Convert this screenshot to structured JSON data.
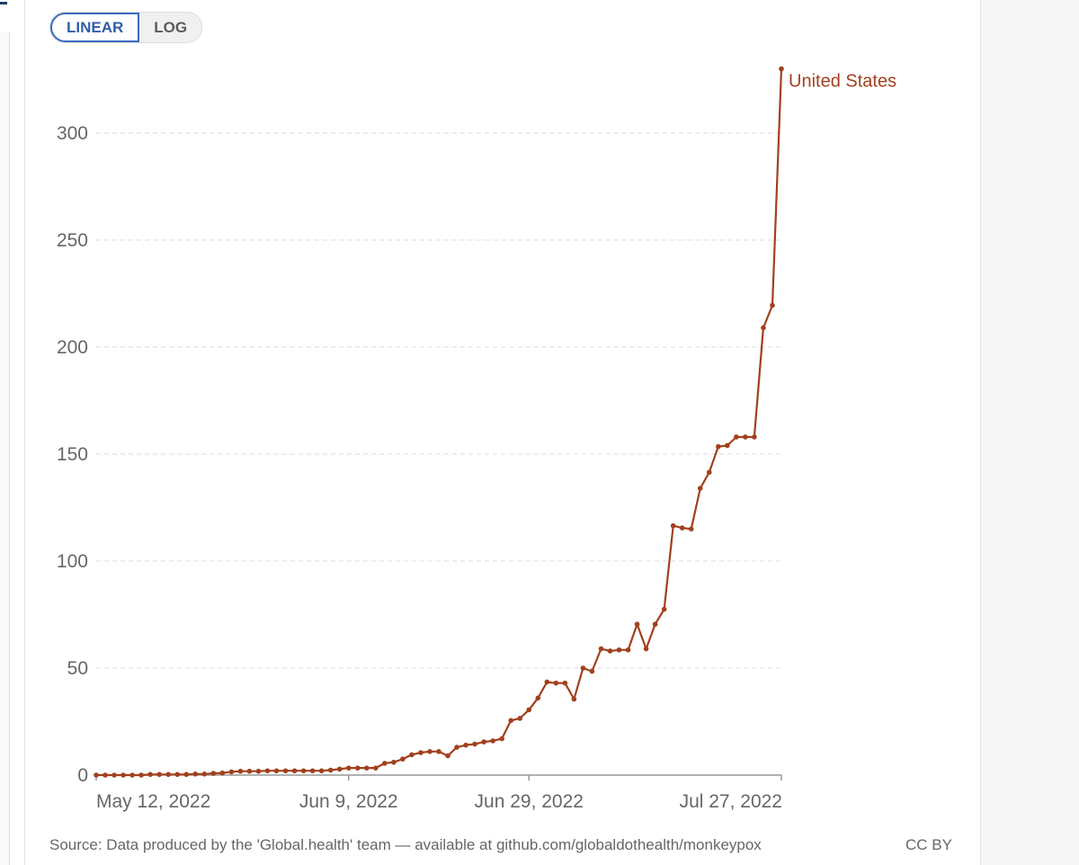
{
  "toggle": {
    "linear": "LINEAR",
    "log": "LOG",
    "selected": "LINEAR"
  },
  "footer": {
    "source": "Source: Data produced by the 'Global.health' team — available at github.com/globaldothealth/monkeypox",
    "license": "CC BY"
  },
  "chart_data": {
    "type": "line",
    "title": "",
    "xlabel": "",
    "ylabel": "",
    "ylim": [
      0,
      330
    ],
    "yticks": [
      0,
      50,
      100,
      150,
      200,
      250,
      300
    ],
    "xticks": [
      "May 12, 2022",
      "Jun 9, 2022",
      "Jun 29, 2022",
      "Jul 27, 2022"
    ],
    "xtick_dates": [
      "2022-05-12",
      "2022-06-09",
      "2022-06-29",
      "2022-07-27"
    ],
    "grid": "horizontal dashed",
    "line_color": "#a2401e",
    "series": [
      {
        "name": "United States",
        "x": [
          "2022-05-12",
          "2022-05-13",
          "2022-05-14",
          "2022-05-15",
          "2022-05-16",
          "2022-05-17",
          "2022-05-18",
          "2022-05-19",
          "2022-05-20",
          "2022-05-21",
          "2022-05-22",
          "2022-05-23",
          "2022-05-24",
          "2022-05-25",
          "2022-05-26",
          "2022-05-27",
          "2022-05-28",
          "2022-05-29",
          "2022-05-30",
          "2022-05-31",
          "2022-06-01",
          "2022-06-02",
          "2022-06-03",
          "2022-06-04",
          "2022-06-05",
          "2022-06-06",
          "2022-06-07",
          "2022-06-08",
          "2022-06-09",
          "2022-06-10",
          "2022-06-11",
          "2022-06-12",
          "2022-06-13",
          "2022-06-14",
          "2022-06-15",
          "2022-06-16",
          "2022-06-17",
          "2022-06-18",
          "2022-06-19",
          "2022-06-20",
          "2022-06-21",
          "2022-06-22",
          "2022-06-23",
          "2022-06-24",
          "2022-06-25",
          "2022-06-26",
          "2022-06-27",
          "2022-06-28",
          "2022-06-29",
          "2022-06-30",
          "2022-07-01",
          "2022-07-02",
          "2022-07-03",
          "2022-07-04",
          "2022-07-05",
          "2022-07-06",
          "2022-07-07",
          "2022-07-08",
          "2022-07-09",
          "2022-07-10",
          "2022-07-11",
          "2022-07-12",
          "2022-07-13",
          "2022-07-14",
          "2022-07-15",
          "2022-07-16",
          "2022-07-17",
          "2022-07-18",
          "2022-07-19",
          "2022-07-20",
          "2022-07-21",
          "2022-07-22",
          "2022-07-23",
          "2022-07-24",
          "2022-07-25",
          "2022-07-26",
          "2022-07-27"
        ],
        "values": [
          0,
          0,
          0,
          0,
          0,
          0,
          0.3,
          0.3,
          0.3,
          0.3,
          0.3,
          0.5,
          0.5,
          0.8,
          1,
          1.5,
          1.8,
          1.8,
          1.8,
          2,
          2,
          2,
          2,
          2,
          2,
          2,
          2.3,
          2.8,
          3.3,
          3.3,
          3.3,
          3.3,
          5.5,
          6,
          7.5,
          9.5,
          10.5,
          11,
          11,
          9,
          13,
          14,
          14.5,
          15.5,
          16,
          17,
          25.5,
          26.5,
          30.5,
          36,
          43.5,
          43,
          43,
          35.5,
          50,
          48.5,
          59,
          58,
          58.5,
          58.5,
          70.5,
          59,
          70.5,
          77.5,
          116.5,
          115.5,
          115,
          134,
          141.5,
          153.5,
          154,
          158,
          158,
          158,
          209,
          219.5,
          330
        ]
      }
    ]
  }
}
